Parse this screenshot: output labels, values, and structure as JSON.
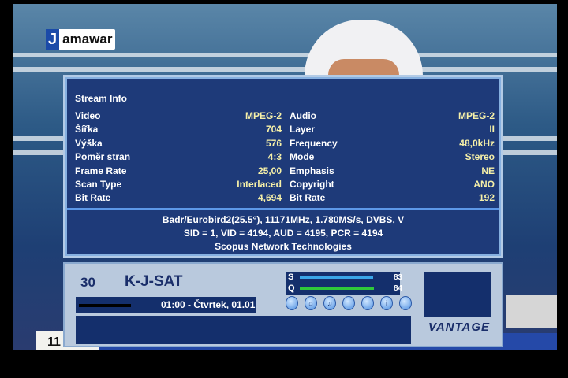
{
  "channel_logo": "Jamawar",
  "ticker_text": "11",
  "stream_info": {
    "title": "Stream Info",
    "video": [
      {
        "label": "Video",
        "value": "MPEG-2"
      },
      {
        "label": "Šířka",
        "value": "704"
      },
      {
        "label": "Výška",
        "value": "576"
      },
      {
        "label": "Poměr stran",
        "value": "4:3"
      },
      {
        "label": "Frame Rate",
        "value": "25,00"
      },
      {
        "label": "Scan Type",
        "value": "Interlaced"
      },
      {
        "label": "Bit Rate",
        "value": "4,694"
      }
    ],
    "audio": [
      {
        "label": "Audio",
        "value": "MPEG-2"
      },
      {
        "label": "Layer",
        "value": "II"
      },
      {
        "label": "Frequency",
        "value": "48,0kHz"
      },
      {
        "label": "Mode",
        "value": "Stereo"
      },
      {
        "label": "Emphasis",
        "value": "NE"
      },
      {
        "label": "Copyright",
        "value": "ANO"
      },
      {
        "label": "Bit Rate",
        "value": "192"
      }
    ],
    "transponder": "Badr/Eurobird2(25.5°), 11171MHz, 1.780MS/s, DVBS, V",
    "pids": "SID = 1, VID = 4194, AUD = 4195, PCR = 4194",
    "provider": "Scopus Network Technologies"
  },
  "infobar": {
    "channel_number": "30",
    "channel_name": "K-J-SAT",
    "time_date": "01:00 - Čtvrtek, 01.01",
    "signal": {
      "label": "S",
      "value": "83",
      "color": "#3aa6e8"
    },
    "quality": {
      "label": "Q",
      "value": "84",
      "color": "#2fc83a"
    },
    "icons": [
      "subtitle-icon",
      "lock-icon",
      "music-icon",
      "teletext-icon",
      "scrambled-icon",
      "info-icon",
      "epg-icon"
    ],
    "brand": "VANTAGE"
  }
}
